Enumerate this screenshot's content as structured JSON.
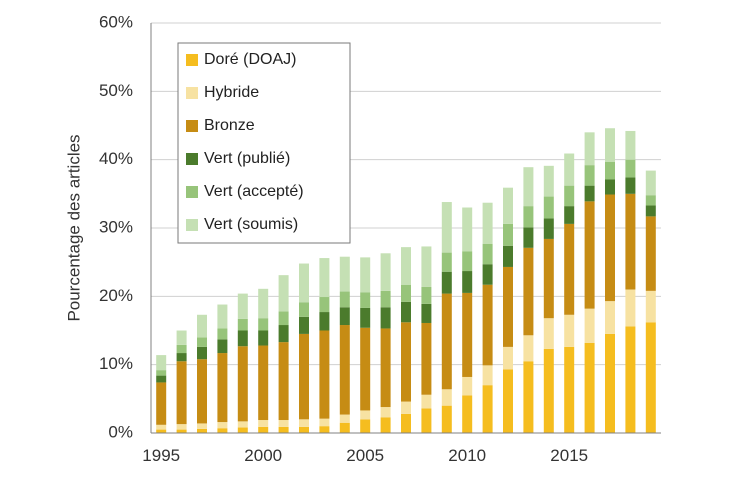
{
  "chart_data": {
    "type": "bar",
    "stacked": true,
    "title": "",
    "xlabel": "",
    "ylabel": "Pourcentage des articles",
    "ylim": [
      0,
      60
    ],
    "yticks": [
      "0%",
      "10%",
      "20%",
      "30%",
      "40%",
      "50%",
      "60%"
    ],
    "xticks": [
      "1995",
      "2000",
      "2005",
      "2010",
      "2015"
    ],
    "xtick_years": [
      1995,
      2000,
      2005,
      2010,
      2015
    ],
    "years": [
      1995,
      1996,
      1997,
      1998,
      1999,
      2000,
      2001,
      2002,
      2003,
      2004,
      2005,
      2006,
      2007,
      2008,
      2009,
      2010,
      2011,
      2012,
      2013,
      2014,
      2015,
      2016,
      2017,
      2018,
      2019
    ],
    "legend_position": "top-left",
    "series": [
      {
        "name": "Doré (DOAJ)",
        "color": "#f5bd1f",
        "values": [
          0.5,
          0.5,
          0.6,
          0.7,
          0.8,
          0.9,
          0.9,
          0.9,
          1.0,
          1.5,
          2.0,
          2.3,
          2.8,
          3.6,
          4.0,
          5.5,
          7.0,
          9.3,
          10.5,
          12.3,
          12.6,
          13.2,
          14.5,
          15.6,
          16.2
        ]
      },
      {
        "name": "Hybride",
        "color": "#f7e2a2",
        "values": [
          0.7,
          0.8,
          0.8,
          0.9,
          0.9,
          1.0,
          1.0,
          1.1,
          1.1,
          1.2,
          1.3,
          1.5,
          1.8,
          2.0,
          2.4,
          2.7,
          2.9,
          3.3,
          3.8,
          4.5,
          4.7,
          5.0,
          4.8,
          5.4,
          4.6
        ]
      },
      {
        "name": "Bronze",
        "color": "#c68c14",
        "values": [
          6.2,
          9.2,
          9.4,
          10.1,
          11.0,
          10.9,
          11.4,
          12.5,
          12.9,
          13.1,
          12.1,
          11.5,
          11.6,
          10.5,
          14.0,
          12.3,
          11.8,
          11.7,
          12.8,
          11.6,
          13.3,
          15.7,
          15.6,
          14.0,
          10.9
        ]
      },
      {
        "name": "Vert (publié)",
        "color": "#4b7b2c",
        "values": [
          1.0,
          1.2,
          1.8,
          2.0,
          2.3,
          2.2,
          2.5,
          2.5,
          2.7,
          2.6,
          2.9,
          3.1,
          3.0,
          2.8,
          3.2,
          3.2,
          3.0,
          3.1,
          3.0,
          3.0,
          2.6,
          2.3,
          2.2,
          2.4,
          1.6
        ]
      },
      {
        "name": "Vert (accepté)",
        "color": "#97c47a",
        "values": [
          0.8,
          1.2,
          1.4,
          1.6,
          1.7,
          1.8,
          2.0,
          2.1,
          2.2,
          2.3,
          2.3,
          2.4,
          2.5,
          2.5,
          2.8,
          2.9,
          3.0,
          3.2,
          3.1,
          3.2,
          3.0,
          3.0,
          2.6,
          2.6,
          1.5
        ]
      },
      {
        "name": "Vert (soumis)",
        "color": "#c5e0b4",
        "values": [
          2.2,
          2.1,
          3.3,
          3.5,
          3.7,
          4.3,
          5.3,
          5.7,
          5.7,
          5.1,
          5.1,
          5.5,
          5.5,
          5.9,
          7.4,
          6.4,
          6.0,
          5.3,
          5.7,
          4.5,
          4.7,
          4.8,
          4.9,
          4.2,
          3.6
        ]
      }
    ]
  }
}
